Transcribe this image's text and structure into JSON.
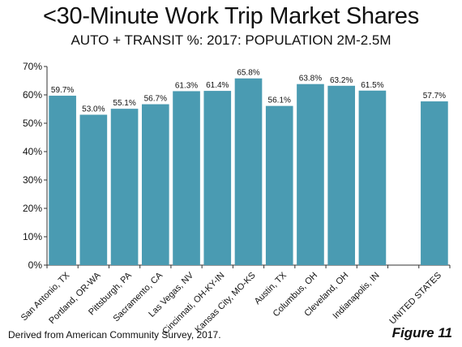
{
  "chart_data": {
    "type": "bar",
    "title": "<30-Minute Work Trip Market Shares",
    "subtitle": "AUTO + TRANSIT %:  2017: POPULATION 2M-2.5M",
    "categories": [
      "San Antonio, TX",
      "Portland, OR-WA",
      "Pittsburgh, PA",
      "Sacramento, CA",
      "Las Vegas, NV",
      "Cincinnati, OH-KY-IN",
      "Kansas City, MO-KS",
      "Austin, TX",
      "Columbus, OH",
      "Cleveland, OH",
      "Indianapolis, IN",
      "",
      "UNITED STATES"
    ],
    "values": [
      59.7,
      53.0,
      55.1,
      56.7,
      61.3,
      61.4,
      65.8,
      56.1,
      63.8,
      63.2,
      61.5,
      null,
      57.7
    ],
    "data_labels": [
      "59.7%",
      "53.0%",
      "55.1%",
      "56.7%",
      "61.3%",
      "61.4%",
      "65.8%",
      "56.1%",
      "63.8%",
      "63.2%",
      "61.5%",
      "",
      "57.7%"
    ],
    "y_ticks": [
      "0%",
      "10%",
      "20%",
      "30%",
      "40%",
      "50%",
      "60%",
      "70%"
    ],
    "ylim": [
      0,
      70
    ],
    "xlabel": "",
    "ylabel": "",
    "grid": false,
    "bar_color": "#4a9bb2",
    "source": "Derived from American Community Survey, 2017.",
    "figure_label": "Figure 11"
  }
}
